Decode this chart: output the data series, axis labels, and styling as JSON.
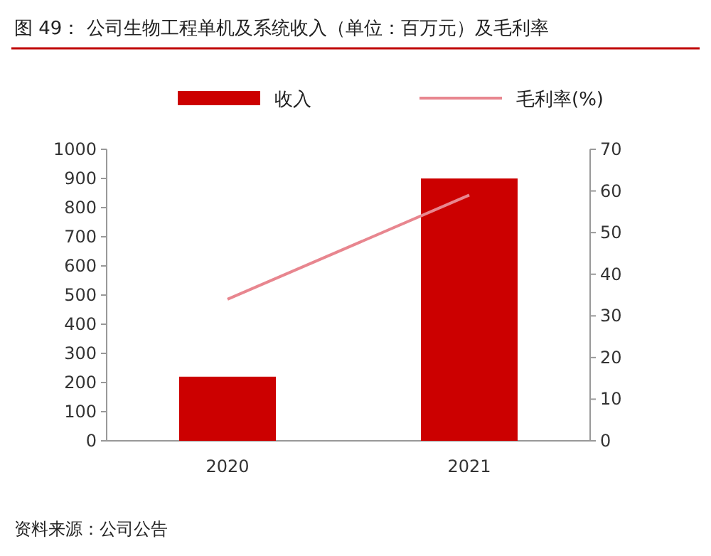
{
  "chart_data": {
    "type": "bar",
    "title": "图 49：  公司生物工程单机及系统收入（单位：百万元）及毛利率",
    "categories": [
      "2020",
      "2021"
    ],
    "series": [
      {
        "name": "收入",
        "color": "#cc0000",
        "values": [
          220,
          900
        ]
      },
      {
        "name": "毛利率(%)",
        "type": "line",
        "axis": "y2",
        "color": "#e8868f",
        "values": [
          34,
          59
        ]
      }
    ],
    "ylim": [
      0,
      1000
    ],
    "yticks": [
      0,
      100,
      200,
      300,
      400,
      500,
      600,
      700,
      800,
      900,
      1000
    ],
    "y2lim": [
      0,
      70
    ],
    "y2ticks": [
      0,
      10,
      20,
      30,
      40,
      50,
      60,
      70
    ],
    "legend": "top",
    "annotations": [
      "资料来源：公司公告"
    ]
  }
}
